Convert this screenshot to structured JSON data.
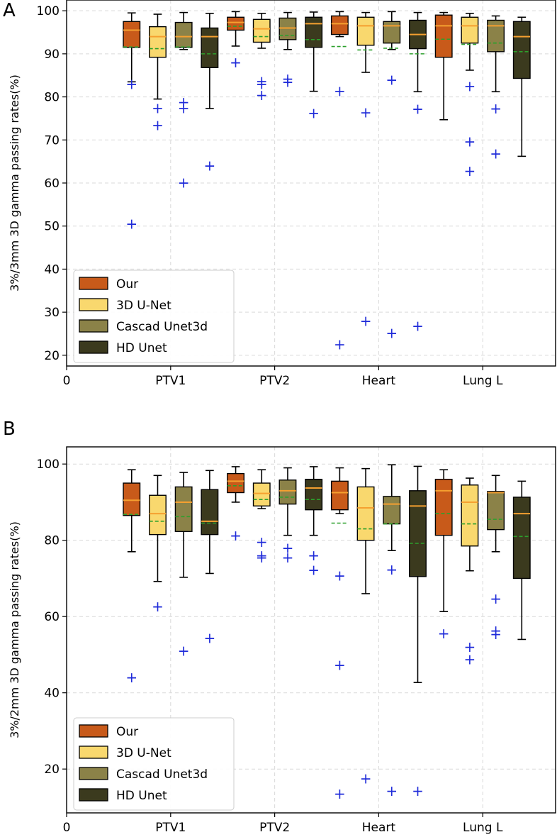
{
  "legend_labels": [
    "Our",
    "3D U-Net",
    "Cascad Unet3d",
    "HD Unet"
  ],
  "colors": {
    "series": [
      "#c85a1a",
      "#f9d86e",
      "#8b8248",
      "#3b3a1e"
    ],
    "median_line": "#f5a030",
    "mean_line": "#2ca02c",
    "outlier": "#1f2bd9",
    "grid": "#d9d9d9"
  },
  "chart_data": [
    {
      "panel_label": "A",
      "type": "box",
      "ylabel": "3%/3mm 3D gamma passing rates(%)",
      "categories": [
        "PTV1",
        "PTV2",
        "Heart",
        "Lung L"
      ],
      "x_zero_label": "0",
      "ylim": [
        17.5,
        102.5
      ],
      "yticks": [
        20,
        30,
        40,
        50,
        60,
        70,
        80,
        90,
        100
      ],
      "legend_position": "lower-left",
      "series": [
        {
          "name": "Our",
          "boxes": [
            {
              "whisker_low": 83.5,
              "q1": 91.5,
              "median": 95.5,
              "q3": 97.5,
              "whisker_high": 99.5,
              "mean": 91.6,
              "outliers": [
                83.0,
                50.5
              ]
            },
            {
              "whisker_low": 91.8,
              "q1": 95.5,
              "median": 97.3,
              "q3": 98.5,
              "whisker_high": 99.8,
              "mean": 96.4,
              "outliers": [
                88.0
              ]
            },
            {
              "whisker_low": 94.0,
              "q1": 94.5,
              "median": 97.0,
              "q3": 98.8,
              "whisker_high": 99.8,
              "mean": 91.7,
              "outliers": [
                81.3,
                22.5
              ]
            },
            {
              "whisker_low": 74.7,
              "q1": 89.2,
              "median": 96.5,
              "q3": 99.0,
              "whisker_high": 99.6,
              "mean": 93.4,
              "outliers": []
            }
          ]
        },
        {
          "name": "3D U-Net",
          "boxes": [
            {
              "whisker_low": 79.5,
              "q1": 89.2,
              "median": 94.0,
              "q3": 96.3,
              "whisker_high": 99.2,
              "mean": 91.2,
              "outliers": [
                77.4,
                73.4
              ]
            },
            {
              "whisker_low": 91.3,
              "q1": 92.7,
              "median": 95.8,
              "q3": 98.0,
              "whisker_high": 99.4,
              "mean": 94.0,
              "outliers": [
                83.6,
                83.0,
                80.4
              ]
            },
            {
              "whisker_low": 85.7,
              "q1": 92.0,
              "median": 96.5,
              "q3": 98.5,
              "whisker_high": 99.6,
              "mean": 90.9,
              "outliers": [
                76.4,
                28.0
              ]
            },
            {
              "whisker_low": 86.2,
              "q1": 92.5,
              "median": 96.5,
              "q3": 98.5,
              "whisker_high": 99.4,
              "mean": 92.2,
              "outliers": [
                82.5,
                69.6,
                62.8
              ]
            }
          ]
        },
        {
          "name": "Cascad Unet3d",
          "boxes": [
            {
              "whisker_low": 91.0,
              "q1": 91.5,
              "median": 94.0,
              "q3": 97.3,
              "whisker_high": 99.6,
              "mean": 91.6,
              "outliers": [
                78.8,
                77.4,
                60.1
              ]
            },
            {
              "whisker_low": 91.0,
              "q1": 93.3,
              "median": 96.0,
              "q3": 98.3,
              "whisker_high": 99.6,
              "mean": 94.3,
              "outliers": [
                84.2,
                83.5
              ]
            },
            {
              "whisker_low": 91.0,
              "q1": 92.5,
              "median": 96.5,
              "q3": 97.5,
              "whisker_high": 99.8,
              "mean": 91.3,
              "outliers": [
                84.0,
                25.2
              ]
            },
            {
              "whisker_low": 81.2,
              "q1": 90.5,
              "median": 96.5,
              "q3": 97.8,
              "whisker_high": 98.8,
              "mean": 92.5,
              "outliers": [
                77.3,
                66.8
              ]
            }
          ]
        },
        {
          "name": "HD Unet",
          "boxes": [
            {
              "whisker_low": 77.3,
              "q1": 86.8,
              "median": 94.0,
              "q3": 96.0,
              "whisker_high": 99.4,
              "mean": 90.0,
              "outliers": [
                64.0
              ]
            },
            {
              "whisker_low": 81.3,
              "q1": 91.5,
              "median": 97.0,
              "q3": 98.5,
              "whisker_high": 99.7,
              "mean": 93.3,
              "outliers": [
                76.2
              ]
            },
            {
              "whisker_low": 81.2,
              "q1": 91.2,
              "median": 94.5,
              "q3": 97.8,
              "whisker_high": 99.6,
              "mean": 90.0,
              "outliers": [
                77.2,
                26.8
              ]
            },
            {
              "whisker_low": 66.2,
              "q1": 84.3,
              "median": 94.0,
              "q3": 97.5,
              "whisker_high": 98.5,
              "mean": 90.5,
              "outliers": []
            }
          ]
        }
      ]
    },
    {
      "panel_label": "B",
      "type": "box",
      "ylabel": "3%/2mm 3D gamma passing rates(%)",
      "categories": [
        "PTV1",
        "PTV2",
        "Heart",
        "Lung L"
      ],
      "x_zero_label": "0",
      "ylim": [
        8.5,
        104.5
      ],
      "yticks": [
        20,
        40,
        60,
        80,
        100
      ],
      "legend_position": "lower-left",
      "series": [
        {
          "name": "Our",
          "boxes": [
            {
              "whisker_low": 77.0,
              "q1": 86.5,
              "median": 90.5,
              "q3": 95.0,
              "whisker_high": 98.5,
              "mean": 86.8,
              "outliers": [
                44.0
              ]
            },
            {
              "whisker_low": 90.0,
              "q1": 92.5,
              "median": 95.5,
              "q3": 97.5,
              "whisker_high": 99.3,
              "mean": 94.3,
              "outliers": [
                81.2
              ]
            },
            {
              "whisker_low": 87.0,
              "q1": 88.0,
              "median": 92.5,
              "q3": 95.5,
              "whisker_high": 99.0,
              "mean": 84.5,
              "outliers": [
                70.7,
                47.3,
                13.5
              ]
            },
            {
              "whisker_low": 61.3,
              "q1": 81.3,
              "median": 93.0,
              "q3": 96.0,
              "whisker_high": 98.5,
              "mean": 87.0,
              "outliers": [
                55.6
              ]
            }
          ]
        },
        {
          "name": "3D U-Net",
          "boxes": [
            {
              "whisker_low": 69.2,
              "q1": 81.5,
              "median": 87.0,
              "q3": 91.8,
              "whisker_high": 97.0,
              "mean": 85.0,
              "outliers": [
                62.6
              ]
            },
            {
              "whisker_low": 88.3,
              "q1": 89.0,
              "median": 92.3,
              "q3": 95.0,
              "whisker_high": 98.5,
              "mean": 90.7,
              "outliers": [
                79.6,
                76.0,
                75.5
              ]
            },
            {
              "whisker_low": 66.0,
              "q1": 80.0,
              "median": 88.5,
              "q3": 94.0,
              "whisker_high": 98.8,
              "mean": 83.0,
              "outliers": [
                17.5
              ]
            },
            {
              "whisker_low": 72.0,
              "q1": 78.5,
              "median": 90.0,
              "q3": 94.5,
              "whisker_high": 96.3,
              "mean": 84.3,
              "outliers": [
                52.0,
                48.8
              ]
            }
          ]
        },
        {
          "name": "Cascad Unet3d",
          "boxes": [
            {
              "whisker_low": 70.3,
              "q1": 82.3,
              "median": 90.0,
              "q3": 94.0,
              "whisker_high": 97.8,
              "mean": 86.2,
              "outliers": [
                51.0
              ]
            },
            {
              "whisker_low": 81.3,
              "q1": 89.5,
              "median": 93.0,
              "q3": 95.8,
              "whisker_high": 99.0,
              "mean": 91.3,
              "outliers": [
                78.0,
                75.5
              ]
            },
            {
              "whisker_low": 77.3,
              "q1": 84.3,
              "median": 89.5,
              "q3": 91.5,
              "whisker_high": 99.8,
              "mean": 84.3,
              "outliers": [
                72.3,
                14.3
              ]
            },
            {
              "whisker_low": 77.0,
              "q1": 82.8,
              "median": 92.5,
              "q3": 92.8,
              "whisker_high": 97.0,
              "mean": 85.5,
              "outliers": [
                64.7,
                56.3,
                55.4
              ]
            }
          ]
        },
        {
          "name": "HD Unet",
          "boxes": [
            {
              "whisker_low": 71.3,
              "q1": 81.5,
              "median": 85.0,
              "q3": 93.3,
              "whisker_high": 98.3,
              "mean": 84.5,
              "outliers": [
                54.4
              ]
            },
            {
              "whisker_low": 81.3,
              "q1": 88.0,
              "median": 93.7,
              "q3": 96.0,
              "whisker_high": 99.3,
              "mean": 90.7,
              "outliers": [
                76.0,
                72.2
              ]
            },
            {
              "whisker_low": 42.7,
              "q1": 70.5,
              "median": 89.0,
              "q3": 93.0,
              "whisker_high": 99.4,
              "mean": 79.2,
              "outliers": [
                14.3
              ]
            },
            {
              "whisker_low": 54.0,
              "q1": 70.0,
              "median": 87.0,
              "q3": 91.3,
              "whisker_high": 95.5,
              "mean": 81.0,
              "outliers": []
            }
          ]
        }
      ]
    }
  ]
}
